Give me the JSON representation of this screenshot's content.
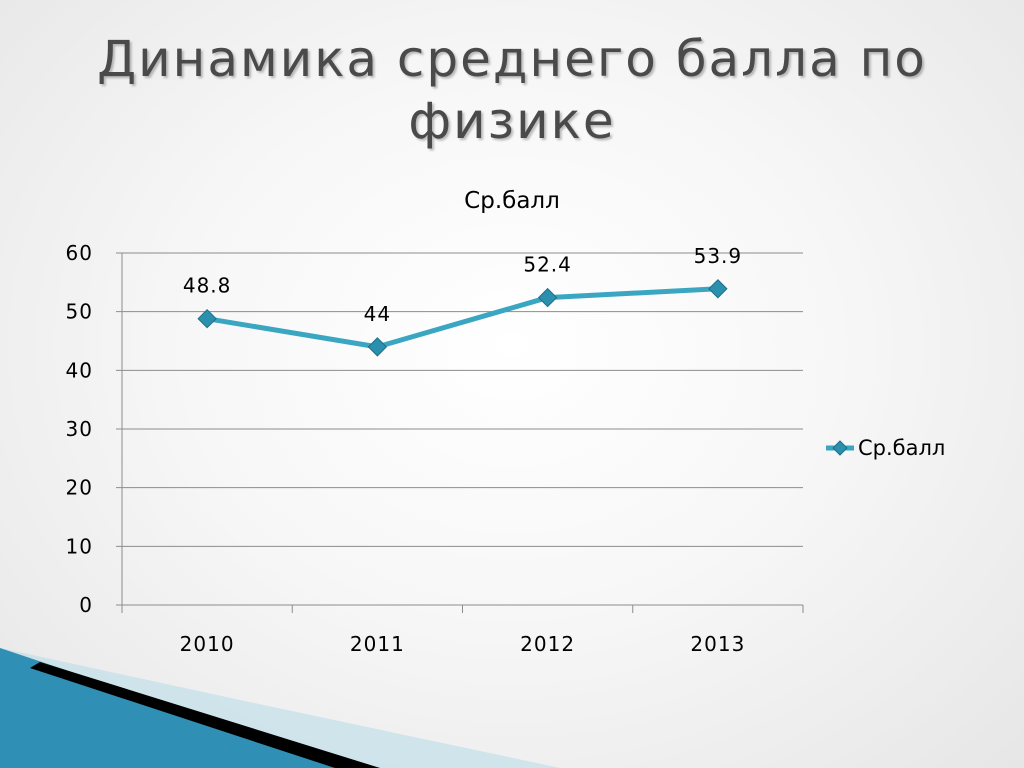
{
  "slide": {
    "title": "Динамика среднего балла по физике"
  },
  "colors": {
    "series": "#3aa6c2",
    "marker": "#2b8fae",
    "marker_stroke": "#1d6f88",
    "gridline": "#8c8c8c",
    "decor_blue": "#2f8fb4",
    "decor_black": "#000000"
  },
  "chart_data": {
    "type": "line",
    "title": "Ср.балл",
    "xlabel": "",
    "ylabel": "",
    "categories": [
      "2010",
      "2011",
      "2012",
      "2013"
    ],
    "series": [
      {
        "name": "Ср.балл",
        "values": [
          48.8,
          44,
          52.4,
          53.9
        ],
        "labels": [
          "48.8",
          "44",
          "52.4",
          "53.9"
        ]
      }
    ],
    "ylim": [
      0,
      60
    ],
    "yticks": [
      0,
      10,
      20,
      30,
      40,
      50,
      60
    ],
    "grid": true,
    "legend": "right",
    "markers": "diamond"
  }
}
